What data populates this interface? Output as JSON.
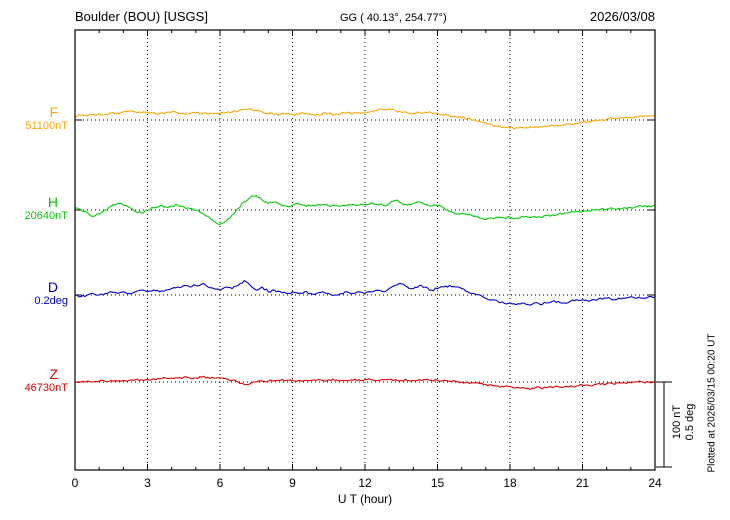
{
  "header": {
    "station_title": "Boulder (BOU)  [USGS]",
    "gg_coords": "GG ( 40.13°, 254.77°)",
    "date": "2026/03/08"
  },
  "footer": {
    "plotted_at": "Plotted at 2026/03/15 00:20 UT"
  },
  "chart_data": {
    "type": "line",
    "title": "Boulder (BOU) [USGS] magnetogram",
    "xlabel": "U T (hour)",
    "x_range": [
      0,
      24
    ],
    "x_ticks": [
      0,
      3,
      6,
      9,
      12,
      15,
      18,
      21,
      24
    ],
    "sample_step_hours": 0.25,
    "grid": "dotted-vertical-at-3h",
    "scale_bar": {
      "line1": "100 nT",
      "line2": "0.5 deg",
      "nT": 100,
      "deg": 0.5
    },
    "series": [
      {
        "name": "F",
        "unit": "nT",
        "color": "#FFA500",
        "baseline_value": 51100,
        "baseline_label": "51100nT",
        "offsets": [
          5,
          6,
          5,
          7,
          8,
          7,
          9,
          8,
          10,
          11,
          10,
          9,
          10,
          9,
          8,
          9,
          10,
          9,
          8,
          8,
          9,
          8,
          7,
          8,
          8,
          9,
          10,
          11,
          13,
          14,
          12,
          10,
          8,
          7,
          7,
          8,
          7,
          7,
          8,
          7,
          7,
          8,
          8,
          7,
          8,
          9,
          8,
          9,
          10,
          11,
          12,
          13,
          14,
          12,
          10,
          9,
          8,
          9,
          10,
          9,
          8,
          6,
          5,
          4,
          3,
          2,
          0,
          -2,
          -4,
          -6,
          -8,
          -9,
          -10,
          -10,
          -9,
          -10,
          -9,
          -8,
          -8,
          -7,
          -7,
          -6,
          -5,
          -4,
          -3,
          -2,
          -1,
          0,
          1,
          2,
          2,
          3,
          3,
          4,
          4,
          5,
          5
        ]
      },
      {
        "name": "H",
        "unit": "nT",
        "color": "#00CC00",
        "baseline_value": 20640,
        "baseline_label": "20640nT",
        "offsets": [
          2,
          0,
          -3,
          -8,
          -5,
          0,
          5,
          8,
          6,
          3,
          -2,
          -4,
          0,
          3,
          5,
          4,
          5,
          6,
          4,
          2,
          0,
          -4,
          -8,
          -14,
          -18,
          -14,
          -6,
          2,
          10,
          16,
          18,
          12,
          8,
          10,
          7,
          5,
          6,
          8,
          6,
          5,
          6,
          7,
          5,
          6,
          5,
          6,
          7,
          6,
          7,
          9,
          7,
          6,
          8,
          12,
          9,
          6,
          8,
          10,
          7,
          5,
          6,
          3,
          -2,
          -5,
          -4,
          -6,
          -8,
          -10,
          -12,
          -10,
          -9,
          -10,
          -9,
          -10,
          -8,
          -9,
          -8,
          -9,
          -7,
          -6,
          -5,
          -4,
          -3,
          -2,
          -2,
          -1,
          0,
          1,
          1,
          2,
          2,
          3,
          3,
          4,
          4,
          5,
          6
        ]
      },
      {
        "name": "D",
        "unit": "deg",
        "color": "#0000CD",
        "baseline_value": 0.2,
        "baseline_label": "0.2deg",
        "offsets": [
          0,
          -0.01,
          0,
          0.01,
          0,
          0.01,
          0.02,
          0.01,
          0.02,
          0.01,
          0.02,
          0.03,
          0.02,
          0.03,
          0.02,
          0.03,
          0.04,
          0.05,
          0.06,
          0.05,
          0.06,
          0.07,
          0.05,
          0.04,
          0.03,
          0.05,
          0.04,
          0.06,
          0.09,
          0.06,
          0.03,
          0.05,
          0.02,
          0.03,
          0.02,
          0.01,
          0.02,
          0.01,
          0.02,
          0.01,
          0.01,
          0.02,
          0.01,
          0,
          0.01,
          0.02,
          0.01,
          0.02,
          0.01,
          0.02,
          0.03,
          0.02,
          0.04,
          0.06,
          0.07,
          0.05,
          0.04,
          0.06,
          0.05,
          0.03,
          0.04,
          0.05,
          0.06,
          0.05,
          0.04,
          0.02,
          0.01,
          0,
          -0.02,
          -0.03,
          -0.04,
          -0.05,
          -0.05,
          -0.06,
          -0.05,
          -0.06,
          -0.05,
          -0.06,
          -0.05,
          -0.04,
          -0.04,
          -0.05,
          -0.04,
          -0.03,
          -0.03,
          -0.04,
          -0.03,
          -0.02,
          -0.02,
          -0.03,
          -0.02,
          -0.02,
          -0.01,
          -0.02,
          -0.02,
          -0.01,
          -0.01
        ]
      },
      {
        "name": "Z",
        "unit": "nT",
        "color": "#DD0000",
        "baseline_value": 46730,
        "baseline_label": "46730nT",
        "offsets": [
          0,
          0,
          1,
          0,
          1,
          1,
          2,
          1,
          2,
          2,
          3,
          3,
          3,
          4,
          4,
          5,
          5,
          5,
          6,
          5,
          5,
          6,
          6,
          5,
          5,
          4,
          2,
          0,
          -3,
          -2,
          0,
          1,
          1,
          2,
          2,
          2,
          2,
          2,
          2,
          2,
          2,
          2,
          3,
          2,
          2,
          2,
          2,
          3,
          3,
          3,
          2,
          3,
          3,
          3,
          2,
          2,
          2,
          3,
          3,
          2,
          2,
          2,
          1,
          1,
          0,
          0,
          -1,
          -2,
          -3,
          -4,
          -5,
          -6,
          -6,
          -7,
          -7,
          -8,
          -8,
          -7,
          -7,
          -7,
          -6,
          -6,
          -5,
          -5,
          -4,
          -4,
          -3,
          -3,
          -2,
          -2,
          -1,
          -1,
          -1,
          0,
          0,
          0,
          1
        ]
      }
    ]
  }
}
